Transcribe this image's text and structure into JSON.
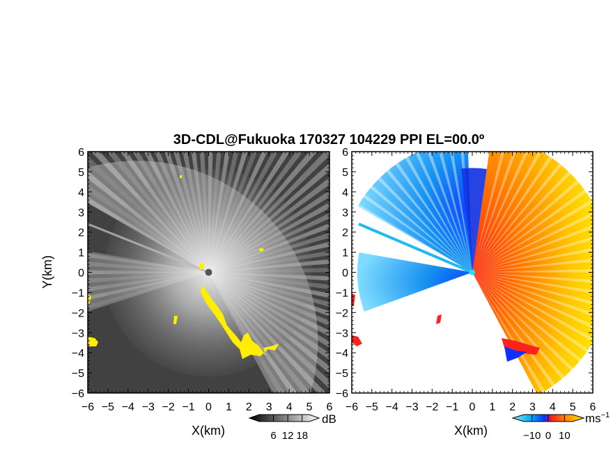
{
  "chart_data": [
    {
      "type": "heatmap",
      "title": "3D-CDL@Fukuoka 170327 104229 PPI EL=00.0º",
      "panel": "left",
      "quantity": "signal-to-noise ratio (grayscale), clutter in yellow",
      "xlabel": "X(km)",
      "ylabel": "Y(km)",
      "xlim": [
        -6,
        6
      ],
      "ylim": [
        -6,
        6
      ],
      "xticks": [
        "−6",
        "−5",
        "−4",
        "−3",
        "−2",
        "−1",
        "0",
        "1",
        "2",
        "3",
        "4",
        "5",
        "6"
      ],
      "yticks": [
        "6",
        "5",
        "4",
        "3",
        "2",
        "1",
        "0",
        "−1",
        "−2",
        "−3",
        "−4",
        "−5",
        "−6"
      ],
      "colorbar": {
        "unit": "dB",
        "tick_labels": [
          "6",
          "12",
          "18"
        ],
        "tick_values": [
          6,
          12,
          18
        ],
        "range": [
          0,
          21
        ],
        "colors": [
          "#000000",
          "#ffffff"
        ]
      },
      "colors": {
        "background": "#2a2a2a",
        "clutter": "#ffee00"
      }
    },
    {
      "type": "heatmap",
      "panel": "right",
      "quantity": "Doppler radial velocity",
      "xlabel": "X(km)",
      "xlim": [
        -6,
        6
      ],
      "ylim": [
        -6,
        6
      ],
      "xticks": [
        "−6",
        "−5",
        "−4",
        "−3",
        "−2",
        "−1",
        "0",
        "1",
        "2",
        "3",
        "4",
        "5",
        "6"
      ],
      "yticks": [
        "6",
        "5",
        "4",
        "3",
        "2",
        "1",
        "0",
        "−1",
        "−2",
        "−3",
        "−4",
        "−5",
        "−6"
      ],
      "colorbar": {
        "unit": "ms",
        "unit_exponent": "−1",
        "tick_labels": [
          "−10",
          "0",
          "10"
        ],
        "tick_values": [
          -10,
          0,
          10
        ],
        "range": [
          -15,
          15
        ],
        "colors": [
          "#7fe0ff",
          "#00a8ff",
          "#0040ff",
          "#ff2020",
          "#ff8000",
          "#ffe000"
        ]
      },
      "colors": {
        "approaching": "#1a6cff",
        "receding": "#ff6a00",
        "background": "#ffffff"
      }
    }
  ]
}
